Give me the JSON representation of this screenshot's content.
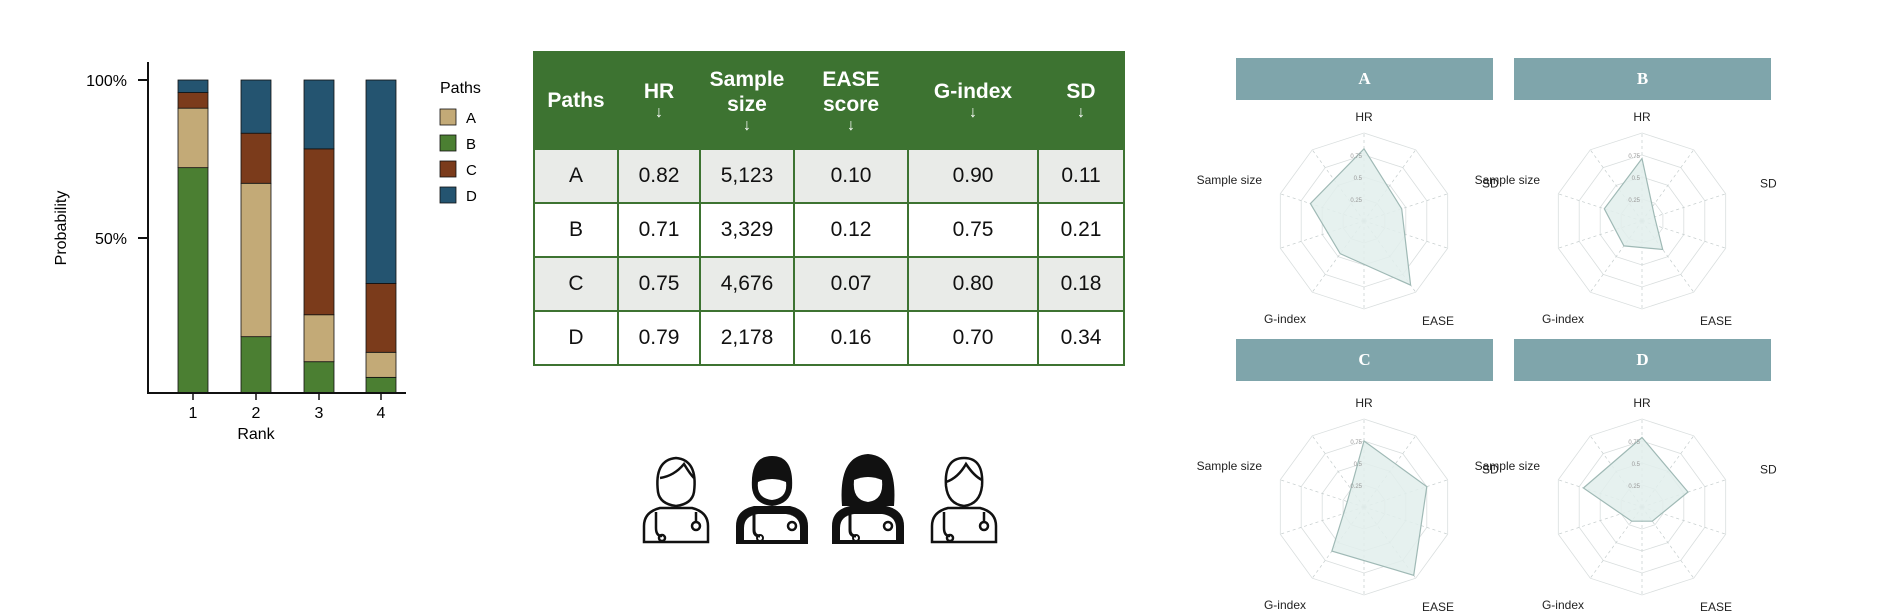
{
  "stacked_chart": {
    "ylabel": "Probability",
    "xlabel": "Rank",
    "ytick_labels": [
      "100%",
      "50%"
    ],
    "legend_title": "Paths"
  },
  "table": {
    "headers": [
      "Paths",
      "HR",
      "Sample size",
      "EASE score",
      "G-index",
      "SD"
    ],
    "sort_arrow": "↓",
    "rows": [
      [
        "A",
        "0.82",
        "5,123",
        "0.10",
        "0.90",
        "0.11"
      ],
      [
        "B",
        "0.71",
        "3,329",
        "0.12",
        "0.75",
        "0.21"
      ],
      [
        "C",
        "0.75",
        "4,676",
        "0.07",
        "0.80",
        "0.18"
      ],
      [
        "D",
        "0.79",
        "2,178",
        "0.16",
        "0.70",
        "0.34"
      ]
    ]
  },
  "icons": [
    "doctor-female-outline-icon",
    "doctor-male-filled-icon",
    "doctor-female-filled-icon",
    "doctor-male-outline-icon"
  ],
  "colors": {
    "A": "#c3aa77",
    "B": "#4b7f32",
    "C": "#7b3b1b",
    "D": "#245470",
    "table_header": "#3d7331",
    "radar_banner": "#7fa5ab",
    "radar_fill": "#e2eeec",
    "radar_stroke": "#9fb9b5"
  },
  "chart_data": [
    {
      "type": "bar",
      "stacked": true,
      "categories": [
        "1",
        "2",
        "3",
        "4"
      ],
      "series": [
        {
          "name": "A",
          "values": [
            0.19,
            0.49,
            0.15,
            0.08
          ]
        },
        {
          "name": "B",
          "values": [
            0.72,
            0.18,
            0.1,
            0.05
          ]
        },
        {
          "name": "C",
          "values": [
            0.05,
            0.16,
            0.53,
            0.22
          ]
        },
        {
          "name": "D",
          "values": [
            0.04,
            0.17,
            0.22,
            0.65
          ]
        }
      ],
      "xlabel": "Rank",
      "ylabel": "Probability",
      "ylim": [
        0,
        1
      ],
      "ytick_labels": [
        "100%",
        "50%"
      ],
      "legend": {
        "title": "Paths",
        "placement": "right"
      }
    },
    {
      "type": "radar",
      "axes": [
        "HR",
        "SD",
        "EASE",
        "G-index",
        "Sample size"
      ],
      "ring_labels": [
        "0.75",
        "0.5",
        "0.25"
      ],
      "ring_values": [
        0.25,
        0.5,
        0.75,
        1.0
      ],
      "panels": [
        {
          "title": "A",
          "values": [
            0.82,
            0.45,
            0.9,
            0.46,
            0.64
          ]
        },
        {
          "title": "B",
          "values": [
            0.71,
            0.15,
            0.4,
            0.35,
            0.45
          ]
        },
        {
          "title": "C",
          "values": [
            0.75,
            0.75,
            0.96,
            0.62,
            0.2
          ]
        },
        {
          "title": "D",
          "values": [
            0.79,
            0.55,
            0.2,
            0.2,
            0.7
          ]
        }
      ]
    }
  ]
}
